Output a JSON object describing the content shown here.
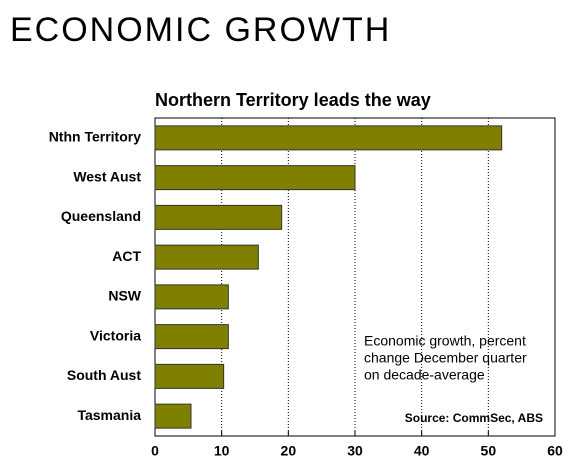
{
  "chart_data": {
    "type": "hbar",
    "title": "ECONOMIC GROWTH",
    "subtitle": "Northern Territory leads the way",
    "categories": [
      "Nthn Territory",
      "West Aust",
      "Queensland",
      "ACT",
      "NSW",
      "Victoria",
      "South Aust",
      "Tasmania"
    ],
    "values": [
      52,
      30,
      19,
      15.5,
      11,
      11,
      10.3,
      5.4
    ],
    "color": "#808000",
    "xlim": [
      0,
      60
    ],
    "xticks": [
      0,
      10,
      20,
      30,
      40,
      50,
      60
    ],
    "grid": true,
    "annotation": [
      "Economic growth, percent",
      "change December quarter",
      "on decade-average"
    ],
    "source": "Source: CommSec, ABS"
  }
}
